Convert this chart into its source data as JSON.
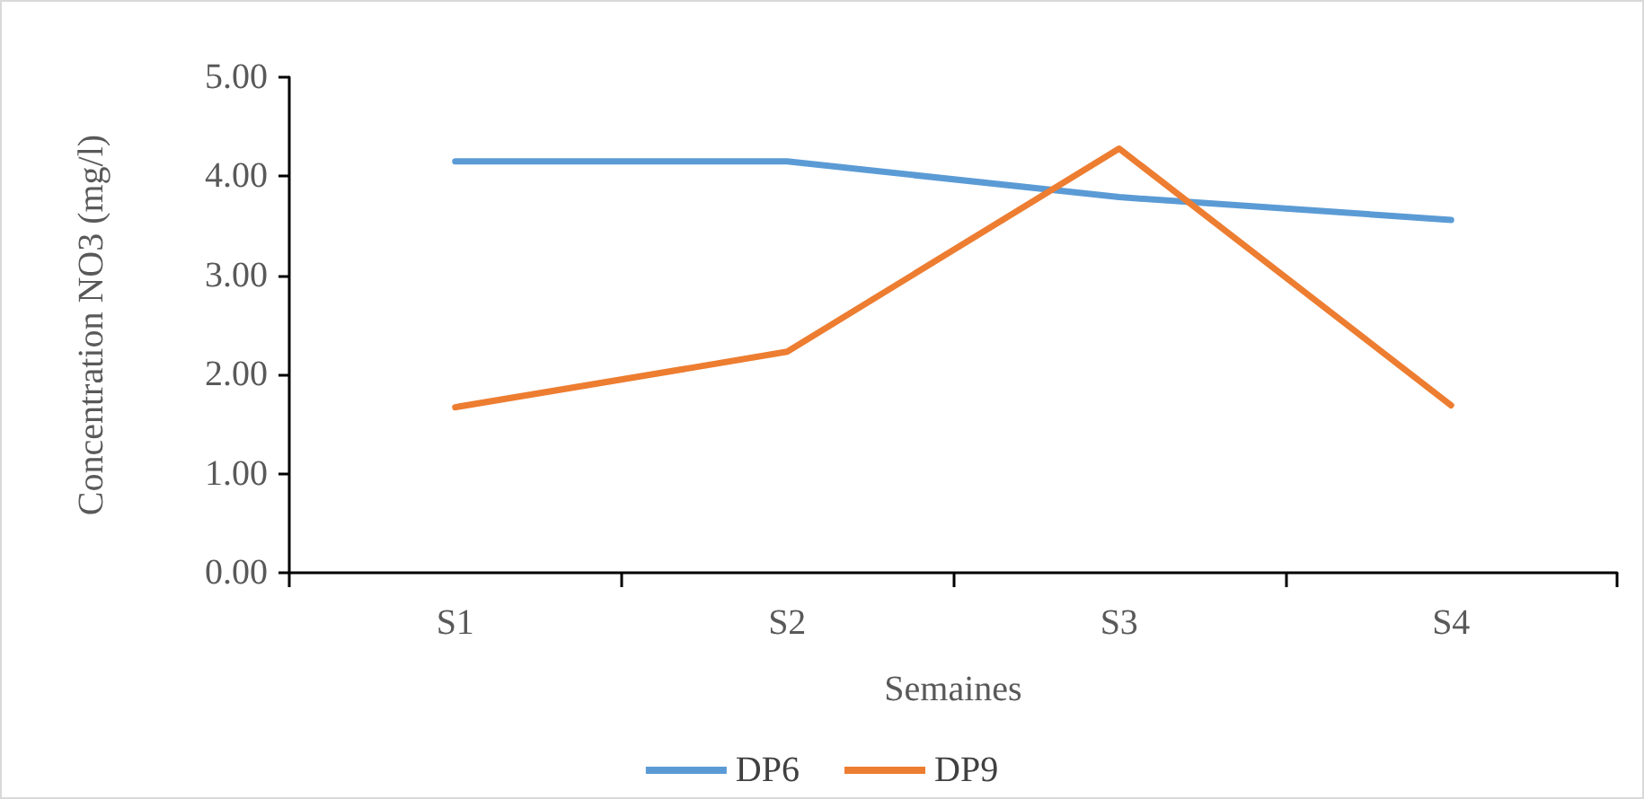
{
  "chart_data": {
    "type": "line",
    "xlabel": "Semaines",
    "ylabel": "Concentration NO3 (mg/l)",
    "categories": [
      "S1",
      "S2",
      "S3",
      "S4"
    ],
    "series": [
      {
        "name": "DP6",
        "color": "#5b9bd5",
        "values": [
          4.15,
          4.15,
          3.79,
          3.56
        ]
      },
      {
        "name": "DP9",
        "color": "#ed7d31",
        "values": [
          1.67,
          2.23,
          4.28,
          1.69
        ]
      }
    ],
    "ylim": [
      0,
      5
    ],
    "yticks": [
      {
        "value": 0,
        "label": "0.00"
      },
      {
        "value": 1,
        "label": "1.00"
      },
      {
        "value": 2,
        "label": "2.00"
      },
      {
        "value": 3,
        "label": "3.00"
      },
      {
        "value": 4,
        "label": "4.00"
      },
      {
        "value": 5,
        "label": "5.00"
      }
    ],
    "grid": false,
    "legend": "bottom",
    "marker": "none",
    "line_style": "solid"
  }
}
